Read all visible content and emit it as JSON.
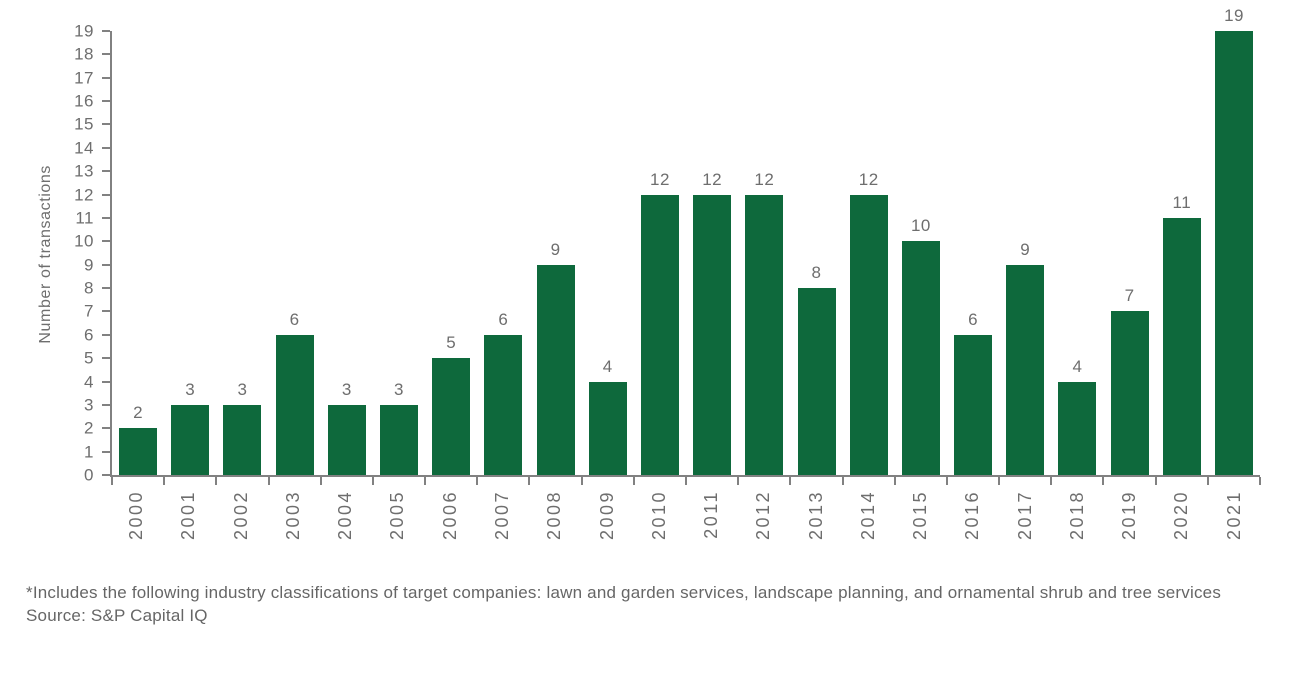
{
  "chart_data": {
    "type": "bar",
    "title": "",
    "xlabel": "",
    "ylabel": "Number of transactions",
    "categories": [
      "2000",
      "2001",
      "2002",
      "2003",
      "2004",
      "2005",
      "2006",
      "2007",
      "2008",
      "2009",
      "2010",
      "2011",
      "2012",
      "2013",
      "2014",
      "2015",
      "2016",
      "2017",
      "2018",
      "2019",
      "2020",
      "2021"
    ],
    "values": [
      2,
      3,
      3,
      6,
      3,
      3,
      5,
      6,
      9,
      4,
      12,
      12,
      12,
      8,
      12,
      10,
      6,
      9,
      4,
      7,
      11,
      19
    ],
    "ylim": [
      0,
      19
    ],
    "y_tick_step": 1,
    "grid": false,
    "legend": "none",
    "value_labels_shown": true,
    "bar_color": "#0e693c"
  },
  "colors": {
    "bar": "#0e693c",
    "axis": "#818181",
    "text": "#6e6e6e"
  },
  "footnote": {
    "note": "*Includes the following industry classifications of target companies: lawn and garden services, landscape planning, and ornamental shrub and tree services",
    "source": "Source: S&P Capital IQ"
  }
}
